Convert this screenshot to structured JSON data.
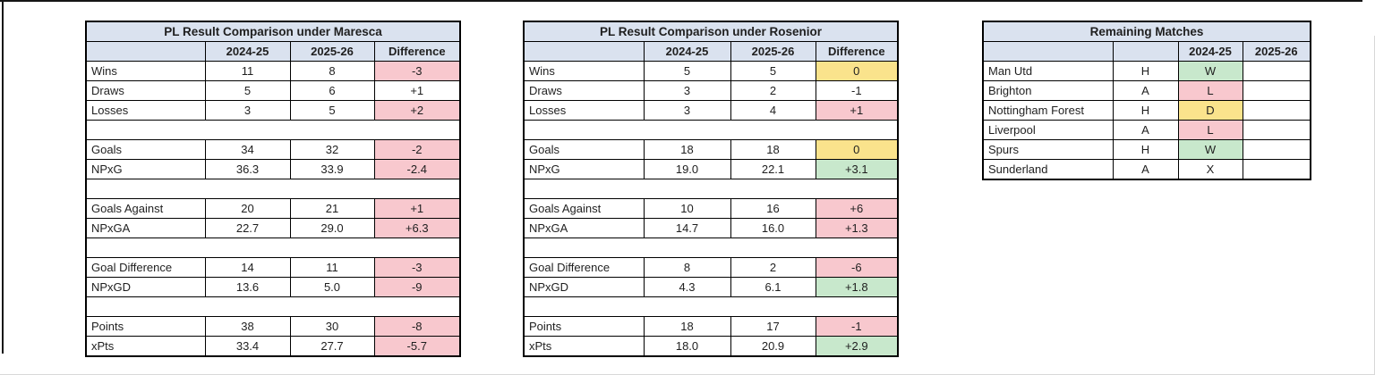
{
  "colors": {
    "header_fill": "#dae2ef",
    "negative": "#f8c8ce",
    "neutral": "#fae38c",
    "positive": "#c8e8cc",
    "grid_border": "#000000"
  },
  "tables": [
    {
      "title": "PL Result Comparison under Maresca",
      "columns": [
        "",
        "2024-25",
        "2025-26",
        "Difference"
      ],
      "rows": [
        {
          "cells": [
            "Wins",
            "11",
            "8",
            "-3"
          ],
          "fills": {
            "3": "negative"
          }
        },
        {
          "cells": [
            "Draws",
            "5",
            "6",
            "+1"
          ],
          "fills": {}
        },
        {
          "cells": [
            "Losses",
            "3",
            "5",
            "+2"
          ],
          "fills": {
            "3": "negative"
          }
        },
        {
          "spacer": true
        },
        {
          "cells": [
            "Goals",
            "34",
            "32",
            "-2"
          ],
          "fills": {
            "3": "negative"
          }
        },
        {
          "cells": [
            "NPxG",
            "36.3",
            "33.9",
            "-2.4"
          ],
          "fills": {
            "3": "negative"
          }
        },
        {
          "spacer": true
        },
        {
          "cells": [
            "Goals Against",
            "20",
            "21",
            "+1"
          ],
          "fills": {
            "3": "negative"
          }
        },
        {
          "cells": [
            "NPxGA",
            "22.7",
            "29.0",
            "+6.3"
          ],
          "fills": {
            "3": "negative"
          }
        },
        {
          "spacer": true
        },
        {
          "cells": [
            "Goal Difference",
            "14",
            "11",
            "-3"
          ],
          "fills": {
            "3": "negative"
          }
        },
        {
          "cells": [
            "NPxGD",
            "13.6",
            "5.0",
            "-9"
          ],
          "fills": {
            "3": "negative"
          }
        },
        {
          "spacer": true
        },
        {
          "cells": [
            "Points",
            "38",
            "30",
            "-8"
          ],
          "fills": {
            "3": "negative"
          }
        },
        {
          "cells": [
            "xPts",
            "33.4",
            "27.7",
            "-5.7"
          ],
          "fills": {
            "3": "negative"
          }
        }
      ]
    },
    {
      "title": "PL Result Comparison under Rosenior",
      "columns": [
        "",
        "2024-25",
        "2025-26",
        "Difference"
      ],
      "rows": [
        {
          "cells": [
            "Wins",
            "5",
            "5",
            "0"
          ],
          "fills": {
            "3": "neutral"
          }
        },
        {
          "cells": [
            "Draws",
            "3",
            "2",
            "-1"
          ],
          "fills": {}
        },
        {
          "cells": [
            "Losses",
            "3",
            "4",
            "+1"
          ],
          "fills": {
            "3": "negative"
          }
        },
        {
          "spacer": true
        },
        {
          "cells": [
            "Goals",
            "18",
            "18",
            "0"
          ],
          "fills": {
            "3": "neutral"
          }
        },
        {
          "cells": [
            "NPxG",
            "19.0",
            "22.1",
            "+3.1"
          ],
          "fills": {
            "3": "positive"
          }
        },
        {
          "spacer": true
        },
        {
          "cells": [
            "Goals Against",
            "10",
            "16",
            "+6"
          ],
          "fills": {
            "3": "negative"
          }
        },
        {
          "cells": [
            "NPxGA",
            "14.7",
            "16.0",
            "+1.3"
          ],
          "fills": {
            "3": "negative"
          }
        },
        {
          "spacer": true
        },
        {
          "cells": [
            "Goal Difference",
            "8",
            "2",
            "-6"
          ],
          "fills": {
            "3": "negative"
          }
        },
        {
          "cells": [
            "NPxGD",
            "4.3",
            "6.1",
            "+1.8"
          ],
          "fills": {
            "3": "positive"
          }
        },
        {
          "spacer": true
        },
        {
          "cells": [
            "Points",
            "18",
            "17",
            "-1"
          ],
          "fills": {
            "3": "negative"
          }
        },
        {
          "cells": [
            "xPts",
            "18.0",
            "20.9",
            "+2.9"
          ],
          "fills": {
            "3": "positive"
          }
        }
      ]
    },
    {
      "title": "Remaining Matches",
      "columns": [
        "",
        "",
        "2024-25",
        "2025-26"
      ],
      "rows": [
        {
          "cells": [
            "Man Utd",
            "H",
            "W",
            ""
          ],
          "fills": {
            "2": "positive"
          }
        },
        {
          "cells": [
            "Brighton",
            "A",
            "L",
            ""
          ],
          "fills": {
            "2": "negative"
          }
        },
        {
          "cells": [
            "Nottingham Forest",
            "H",
            "D",
            ""
          ],
          "fills": {
            "2": "neutral"
          }
        },
        {
          "cells": [
            "Liverpool",
            "A",
            "L",
            ""
          ],
          "fills": {
            "2": "negative"
          }
        },
        {
          "cells": [
            "Spurs",
            "H",
            "W",
            ""
          ],
          "fills": {
            "2": "positive"
          }
        },
        {
          "cells": [
            "Sunderland",
            "A",
            "X",
            ""
          ],
          "fills": {}
        }
      ]
    }
  ]
}
